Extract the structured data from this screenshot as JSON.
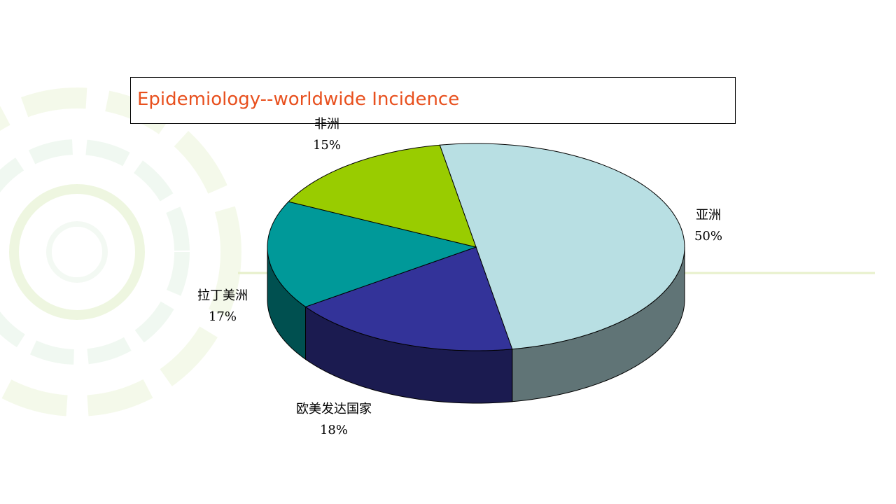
{
  "chart_data": {
    "type": "pie3d",
    "title": "Epidemiology--worldwide Incidence",
    "categories": [
      "亚洲",
      "欧美发达国家",
      "拉丁美洲",
      "非洲"
    ],
    "values": [
      50,
      18,
      17,
      15
    ],
    "value_labels": [
      "50%",
      "18%",
      "17%",
      "15%"
    ],
    "colors": [
      "#b8dfe3",
      "#333399",
      "#009999",
      "#99cc00"
    ]
  }
}
